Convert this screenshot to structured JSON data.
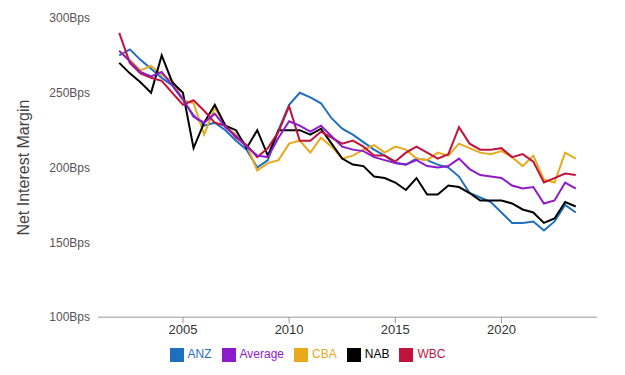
{
  "chart_data": {
    "type": "line",
    "y_label": "Net Interest Margin",
    "grid": false,
    "legend": "bottom",
    "x": [
      2002,
      2002.5,
      2003,
      2003.5,
      2004,
      2004.5,
      2005,
      2005.5,
      2006,
      2006.5,
      2007,
      2007.5,
      2008,
      2008.5,
      2009,
      2009.5,
      2010,
      2010.5,
      2011,
      2011.5,
      2012,
      2012.5,
      2013,
      2013.5,
      2014,
      2014.5,
      2015,
      2015.5,
      2016,
      2016.5,
      2017,
      2017.5,
      2018,
      2018.5,
      2019,
      2019.5,
      2020,
      2020.5,
      2021,
      2021.5,
      2022,
      2022.5,
      2023,
      2023.5
    ],
    "xlim": [
      2001,
      2024.5
    ],
    "xticks": [
      2005,
      2010,
      2015,
      2020
    ],
    "ylim": [
      100,
      300
    ],
    "yticks": [
      {
        "value": 100,
        "label": "100Bps"
      },
      {
        "value": 150,
        "label": "150Bps"
      },
      {
        "value": 200,
        "label": "200Bps"
      },
      {
        "value": 250,
        "label": "250Bps"
      },
      {
        "value": 300,
        "label": "300Bps"
      }
    ],
    "series": [
      {
        "name": "ANZ",
        "color": "#1f6fc0",
        "values": [
          275,
          279,
          272,
          266,
          260,
          255,
          245,
          235,
          228,
          230,
          225,
          218,
          212,
          200,
          205,
          225,
          242,
          250,
          247,
          243,
          233,
          226,
          222,
          217,
          212,
          208,
          203,
          202,
          206,
          205,
          202,
          200,
          194,
          183,
          180,
          177,
          170,
          163,
          163,
          164,
          158,
          164,
          175,
          170
        ]
      },
      {
        "name": "CBA",
        "color": "#e8a91c",
        "values": [
          278,
          272,
          265,
          268,
          262,
          258,
          245,
          243,
          222,
          240,
          228,
          222,
          215,
          198,
          203,
          205,
          216,
          218,
          210,
          220,
          214,
          206,
          208,
          212,
          215,
          210,
          214,
          212,
          206,
          205,
          210,
          208,
          216,
          213,
          210,
          209,
          211,
          207,
          201,
          208,
          192,
          190,
          210,
          206
        ]
      },
      {
        "name": "NAB",
        "color": "#000000",
        "values": [
          270,
          263,
          257,
          250,
          275,
          257,
          250,
          213,
          230,
          242,
          228,
          225,
          213,
          225,
          208,
          225,
          225,
          225,
          222,
          226,
          216,
          206,
          202,
          201,
          194,
          193,
          190,
          185,
          193,
          182,
          182,
          188,
          187,
          183,
          178,
          178,
          178,
          176,
          172,
          170,
          163,
          166,
          177,
          174
        ]
      },
      {
        "name": "WBC",
        "color": "#c0143c",
        "values": [
          290,
          270,
          263,
          260,
          258,
          250,
          242,
          245,
          238,
          230,
          228,
          220,
          215,
          207,
          213,
          224,
          241,
          218,
          218,
          224,
          220,
          216,
          218,
          214,
          208,
          208,
          204,
          210,
          214,
          210,
          206,
          209,
          227,
          216,
          212,
          212,
          213,
          207,
          209,
          204,
          190,
          193,
          196,
          195
        ]
      },
      {
        "name": "Average",
        "color": "#8e1bc9",
        "values": [
          278,
          271,
          264,
          261,
          264,
          255,
          246,
          234,
          230,
          236,
          227,
          221,
          214,
          208,
          207,
          220,
          231,
          228,
          224,
          228,
          221,
          214,
          212,
          211,
          207,
          205,
          203,
          202,
          205,
          201,
          200,
          201,
          206,
          199,
          195,
          194,
          193,
          188,
          186,
          187,
          176,
          178,
          190,
          186
        ]
      }
    ]
  }
}
